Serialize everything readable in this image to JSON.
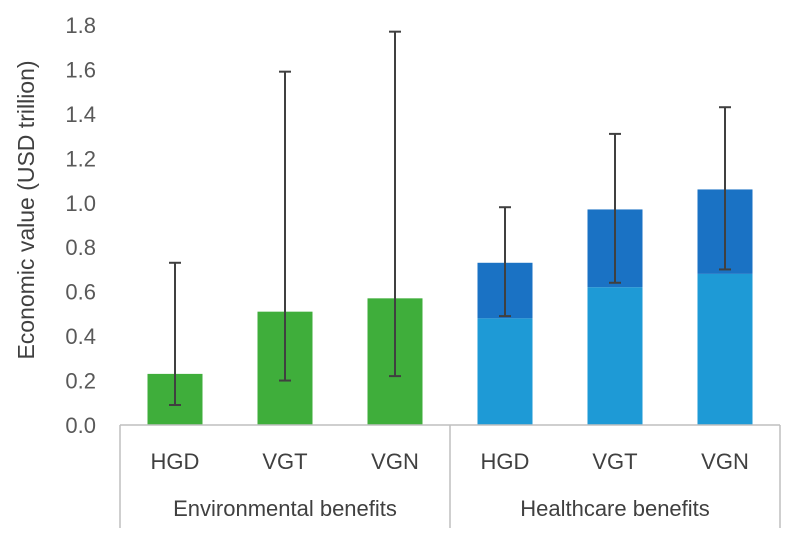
{
  "chart_data": {
    "type": "bar",
    "ylabel": "Economic value (USD trillion)",
    "ylim": [
      0,
      1.8
    ],
    "ytick_labels": [
      "0.0",
      "0.2",
      "0.4",
      "0.6",
      "0.8",
      "1.0",
      "1.2",
      "1.4",
      "1.6",
      "1.8"
    ],
    "groups": [
      {
        "label": "Environmental benefits",
        "bars": [
          {
            "category": "HGD",
            "segments": [
              0.23
            ],
            "error": [
              0.09,
              0.73
            ]
          },
          {
            "category": "VGT",
            "segments": [
              0.51
            ],
            "error": [
              0.2,
              1.59
            ]
          },
          {
            "category": "VGN",
            "segments": [
              0.57
            ],
            "error": [
              0.22,
              1.77
            ]
          }
        ]
      },
      {
        "label": "Healthcare benefits",
        "bars": [
          {
            "category": "HGD",
            "segments": [
              0.48,
              0.25
            ],
            "error": [
              0.49,
              0.98
            ]
          },
          {
            "category": "VGT",
            "segments": [
              0.62,
              0.35
            ],
            "error": [
              0.64,
              1.31
            ]
          },
          {
            "category": "VGN",
            "segments": [
              0.68,
              0.38
            ],
            "error": [
              0.7,
              1.43
            ]
          }
        ]
      }
    ],
    "colors": {
      "environmental": "#3fae3b",
      "healthcare_lower": "#1e9ad6",
      "healthcare_upper": "#1a72c4",
      "error_bar": "#404040",
      "axis": "#bfbfbf"
    },
    "grid": false,
    "legend": "none"
  }
}
